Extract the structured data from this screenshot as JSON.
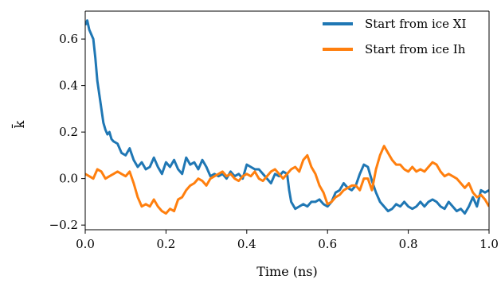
{
  "chart_data": {
    "type": "line",
    "title": "",
    "xlabel": "Time (ns)",
    "ylabel": "k̄",
    "xlim": [
      0.0,
      1.0
    ],
    "ylim": [
      -0.22,
      0.72
    ],
    "x_ticks": [
      0.0,
      0.2,
      0.4,
      0.6,
      0.8,
      1.0
    ],
    "x_tick_labels": [
      "0.0",
      "0.2",
      "0.4",
      "0.6",
      "0.8",
      "1.0"
    ],
    "y_ticks": [
      -0.2,
      0.0,
      0.2,
      0.4,
      0.6
    ],
    "y_tick_labels": [
      "−0.2",
      "0.0",
      "0.2",
      "0.4",
      "0.6"
    ],
    "grid": false,
    "legend_position": "top-right",
    "series": [
      {
        "name": "Start from ice XI",
        "color": "#1f77b4",
        "points": [
          [
            0.0,
            0.66
          ],
          [
            0.005,
            0.68
          ],
          [
            0.01,
            0.64
          ],
          [
            0.015,
            0.62
          ],
          [
            0.02,
            0.6
          ],
          [
            0.025,
            0.52
          ],
          [
            0.03,
            0.42
          ],
          [
            0.035,
            0.36
          ],
          [
            0.04,
            0.3
          ],
          [
            0.045,
            0.24
          ],
          [
            0.05,
            0.21
          ],
          [
            0.055,
            0.19
          ],
          [
            0.06,
            0.2
          ],
          [
            0.065,
            0.17
          ],
          [
            0.07,
            0.16
          ],
          [
            0.08,
            0.15
          ],
          [
            0.09,
            0.11
          ],
          [
            0.1,
            0.1
          ],
          [
            0.11,
            0.13
          ],
          [
            0.12,
            0.08
          ],
          [
            0.13,
            0.05
          ],
          [
            0.14,
            0.07
          ],
          [
            0.15,
            0.04
          ],
          [
            0.16,
            0.05
          ],
          [
            0.17,
            0.09
          ],
          [
            0.18,
            0.05
          ],
          [
            0.19,
            0.02
          ],
          [
            0.2,
            0.07
          ],
          [
            0.21,
            0.05
          ],
          [
            0.22,
            0.08
          ],
          [
            0.23,
            0.04
          ],
          [
            0.24,
            0.02
          ],
          [
            0.25,
            0.09
          ],
          [
            0.26,
            0.06
          ],
          [
            0.27,
            0.07
          ],
          [
            0.28,
            0.04
          ],
          [
            0.29,
            0.08
          ],
          [
            0.3,
            0.05
          ],
          [
            0.31,
            0.01
          ],
          [
            0.32,
            0.02
          ],
          [
            0.33,
            0.01
          ],
          [
            0.34,
            0.02
          ],
          [
            0.35,
            0.0
          ],
          [
            0.36,
            0.03
          ],
          [
            0.37,
            0.01
          ],
          [
            0.38,
            0.02
          ],
          [
            0.39,
            0.0
          ],
          [
            0.4,
            0.06
          ],
          [
            0.41,
            0.05
          ],
          [
            0.42,
            0.04
          ],
          [
            0.43,
            0.04
          ],
          [
            0.44,
            0.02
          ],
          [
            0.45,
            0.0
          ],
          [
            0.46,
            -0.02
          ],
          [
            0.47,
            0.02
          ],
          [
            0.48,
            0.01
          ],
          [
            0.49,
            0.03
          ],
          [
            0.5,
            0.02
          ],
          [
            0.505,
            -0.05
          ],
          [
            0.51,
            -0.1
          ],
          [
            0.52,
            -0.13
          ],
          [
            0.53,
            -0.12
          ],
          [
            0.54,
            -0.11
          ],
          [
            0.55,
            -0.12
          ],
          [
            0.56,
            -0.1
          ],
          [
            0.57,
            -0.1
          ],
          [
            0.58,
            -0.09
          ],
          [
            0.59,
            -0.11
          ],
          [
            0.6,
            -0.12
          ],
          [
            0.61,
            -0.1
          ],
          [
            0.62,
            -0.06
          ],
          [
            0.63,
            -0.05
          ],
          [
            0.64,
            -0.02
          ],
          [
            0.65,
            -0.04
          ],
          [
            0.66,
            -0.05
          ],
          [
            0.67,
            -0.03
          ],
          [
            0.68,
            0.02
          ],
          [
            0.69,
            0.06
          ],
          [
            0.7,
            0.05
          ],
          [
            0.71,
            -0.01
          ],
          [
            0.72,
            -0.06
          ],
          [
            0.73,
            -0.1
          ],
          [
            0.74,
            -0.12
          ],
          [
            0.75,
            -0.14
          ],
          [
            0.76,
            -0.13
          ],
          [
            0.77,
            -0.11
          ],
          [
            0.78,
            -0.12
          ],
          [
            0.79,
            -0.1
          ],
          [
            0.8,
            -0.12
          ],
          [
            0.81,
            -0.13
          ],
          [
            0.82,
            -0.12
          ],
          [
            0.83,
            -0.1
          ],
          [
            0.84,
            -0.12
          ],
          [
            0.85,
            -0.1
          ],
          [
            0.86,
            -0.09
          ],
          [
            0.87,
            -0.1
          ],
          [
            0.88,
            -0.12
          ],
          [
            0.89,
            -0.13
          ],
          [
            0.9,
            -0.1
          ],
          [
            0.91,
            -0.12
          ],
          [
            0.92,
            -0.14
          ],
          [
            0.93,
            -0.13
          ],
          [
            0.94,
            -0.15
          ],
          [
            0.95,
            -0.12
          ],
          [
            0.96,
            -0.08
          ],
          [
            0.97,
            -0.12
          ],
          [
            0.98,
            -0.05
          ],
          [
            0.99,
            -0.06
          ],
          [
            1.0,
            -0.05
          ]
        ]
      },
      {
        "name": "Start from ice Ih",
        "color": "#ff7f0e",
        "points": [
          [
            0.0,
            0.02
          ],
          [
            0.01,
            0.01
          ],
          [
            0.02,
            0.0
          ],
          [
            0.03,
            0.04
          ],
          [
            0.04,
            0.03
          ],
          [
            0.05,
            0.0
          ],
          [
            0.06,
            0.01
          ],
          [
            0.07,
            0.02
          ],
          [
            0.08,
            0.03
          ],
          [
            0.09,
            0.02
          ],
          [
            0.1,
            0.01
          ],
          [
            0.11,
            0.03
          ],
          [
            0.12,
            -0.02
          ],
          [
            0.13,
            -0.08
          ],
          [
            0.14,
            -0.12
          ],
          [
            0.15,
            -0.11
          ],
          [
            0.16,
            -0.12
          ],
          [
            0.17,
            -0.09
          ],
          [
            0.18,
            -0.12
          ],
          [
            0.19,
            -0.14
          ],
          [
            0.2,
            -0.15
          ],
          [
            0.21,
            -0.13
          ],
          [
            0.22,
            -0.14
          ],
          [
            0.23,
            -0.09
          ],
          [
            0.24,
            -0.08
          ],
          [
            0.25,
            -0.05
          ],
          [
            0.26,
            -0.03
          ],
          [
            0.27,
            -0.02
          ],
          [
            0.28,
            0.0
          ],
          [
            0.29,
            -0.01
          ],
          [
            0.3,
            -0.03
          ],
          [
            0.31,
            0.0
          ],
          [
            0.32,
            0.01
          ],
          [
            0.33,
            0.02
          ],
          [
            0.34,
            0.03
          ],
          [
            0.35,
            0.01
          ],
          [
            0.36,
            0.02
          ],
          [
            0.37,
            0.0
          ],
          [
            0.38,
            -0.01
          ],
          [
            0.39,
            0.01
          ],
          [
            0.4,
            0.02
          ],
          [
            0.41,
            0.01
          ],
          [
            0.42,
            0.03
          ],
          [
            0.43,
            0.0
          ],
          [
            0.44,
            -0.01
          ],
          [
            0.45,
            0.01
          ],
          [
            0.46,
            0.03
          ],
          [
            0.47,
            0.04
          ],
          [
            0.48,
            0.02
          ],
          [
            0.49,
            0.0
          ],
          [
            0.5,
            0.02
          ],
          [
            0.51,
            0.04
          ],
          [
            0.52,
            0.05
          ],
          [
            0.53,
            0.03
          ],
          [
            0.54,
            0.08
          ],
          [
            0.55,
            0.1
          ],
          [
            0.56,
            0.05
          ],
          [
            0.57,
            0.02
          ],
          [
            0.58,
            -0.03
          ],
          [
            0.59,
            -0.06
          ],
          [
            0.6,
            -0.11
          ],
          [
            0.61,
            -0.1
          ],
          [
            0.62,
            -0.08
          ],
          [
            0.63,
            -0.07
          ],
          [
            0.64,
            -0.05
          ],
          [
            0.65,
            -0.04
          ],
          [
            0.66,
            -0.03
          ],
          [
            0.67,
            -0.03
          ],
          [
            0.68,
            -0.05
          ],
          [
            0.69,
            0.0
          ],
          [
            0.7,
            0.0
          ],
          [
            0.71,
            -0.05
          ],
          [
            0.72,
            0.04
          ],
          [
            0.73,
            0.1
          ],
          [
            0.74,
            0.14
          ],
          [
            0.75,
            0.11
          ],
          [
            0.76,
            0.08
          ],
          [
            0.77,
            0.06
          ],
          [
            0.78,
            0.06
          ],
          [
            0.79,
            0.04
          ],
          [
            0.8,
            0.03
          ],
          [
            0.81,
            0.05
          ],
          [
            0.82,
            0.03
          ],
          [
            0.83,
            0.04
          ],
          [
            0.84,
            0.03
          ],
          [
            0.85,
            0.05
          ],
          [
            0.86,
            0.07
          ],
          [
            0.87,
            0.06
          ],
          [
            0.88,
            0.03
          ],
          [
            0.89,
            0.01
          ],
          [
            0.9,
            0.02
          ],
          [
            0.91,
            0.01
          ],
          [
            0.92,
            0.0
          ],
          [
            0.93,
            -0.02
          ],
          [
            0.94,
            -0.04
          ],
          [
            0.95,
            -0.02
          ],
          [
            0.96,
            -0.06
          ],
          [
            0.97,
            -0.08
          ],
          [
            0.98,
            -0.07
          ],
          [
            0.99,
            -0.09
          ],
          [
            1.0,
            -0.12
          ]
        ]
      }
    ]
  }
}
